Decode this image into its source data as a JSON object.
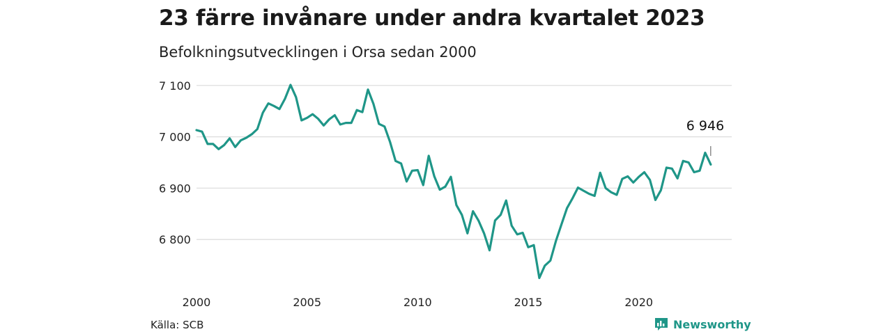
{
  "title": "23 färre invånare under andra kvartalet 2023",
  "subtitle": "Befolkningsutvecklingen i Orsa sedan 2000",
  "source": "Källa: SCB",
  "brand": {
    "name": "Newsworthy",
    "icon": "newsworthy-logo-icon"
  },
  "colors": {
    "line": "#1f9688",
    "grid": "#dedede",
    "brand": "#1f9688"
  },
  "chart_data": {
    "type": "line",
    "title": "23 färre invånare under andra kvartalet 2023",
    "subtitle": "Befolkningsutvecklingen i Orsa sedan 2000",
    "xlabel": "",
    "ylabel": "",
    "xlim": [
      2000,
      2024.2
    ],
    "ylim": [
      6700,
      7120
    ],
    "x_ticks": [
      2000,
      2005,
      2010,
      2015,
      2020
    ],
    "y_ticks": [
      6800,
      6900,
      7000,
      7100
    ],
    "y_tick_labels": [
      "6 800",
      "6 900",
      "7 000",
      "7 100"
    ],
    "grid": "horizontal",
    "end_label": "6 946",
    "series": [
      {
        "x": [
          2000.0,
          2000.25,
          2000.5,
          2000.75,
          2001.0,
          2001.25,
          2001.5,
          2001.75,
          2002.0,
          2002.25,
          2002.5,
          2002.75,
          2003.0,
          2003.25,
          2003.5,
          2003.75,
          2004.0,
          2004.25,
          2004.5,
          2004.75,
          2005.0,
          2005.25,
          2005.5,
          2005.75,
          2006.0,
          2006.25,
          2006.5,
          2006.75,
          2007.0,
          2007.25,
          2007.5,
          2007.75,
          2008.0,
          2008.25,
          2008.5,
          2008.75,
          2009.0,
          2009.25,
          2009.5,
          2009.75,
          2010.0,
          2010.25,
          2010.5,
          2010.75,
          2011.0,
          2011.25,
          2011.5,
          2011.75,
          2012.0,
          2012.25,
          2012.5,
          2012.75,
          2013.0,
          2013.25,
          2013.5,
          2013.75,
          2014.0,
          2014.25,
          2014.5,
          2014.75,
          2015.0,
          2015.25,
          2015.5,
          2015.75,
          2016.0,
          2016.25,
          2016.5,
          2016.75,
          2017.0,
          2017.25,
          2017.5,
          2017.75,
          2018.0,
          2018.25,
          2018.5,
          2018.75,
          2019.0,
          2019.25,
          2019.5,
          2019.75,
          2020.0,
          2020.25,
          2020.5,
          2020.75,
          2021.0,
          2021.25,
          2021.5,
          2021.75,
          2022.0,
          2022.25,
          2022.5,
          2022.75,
          2023.0,
          2023.25
        ],
        "values": [
          7013,
          7010,
          6986,
          6986,
          6976,
          6984,
          6997,
          6980,
          6993,
          6998,
          7005,
          7015,
          7047,
          7065,
          7060,
          7054,
          7074,
          7101,
          7077,
          7032,
          7037,
          7044,
          7035,
          7022,
          7034,
          7042,
          7024,
          7027,
          7027,
          7052,
          7048,
          7092,
          7064,
          7025,
          7020,
          6990,
          6953,
          6948,
          6913,
          6934,
          6935,
          6906,
          6963,
          6923,
          6897,
          6903,
          6922,
          6867,
          6848,
          6812,
          6855,
          6837,
          6812,
          6779,
          6837,
          6848,
          6876,
          6827,
          6810,
          6813,
          6785,
          6789,
          6725,
          6749,
          6759,
          6797,
          6829,
          6861,
          6880,
          6901,
          6895,
          6889,
          6885,
          6930,
          6900,
          6892,
          6887,
          6918,
          6923,
          6911,
          6922,
          6931,
          6916,
          6877,
          6896,
          6940,
          6938,
          6919,
          6953,
          6950,
          6931,
          6934,
          6969,
          6946
        ]
      }
    ]
  }
}
